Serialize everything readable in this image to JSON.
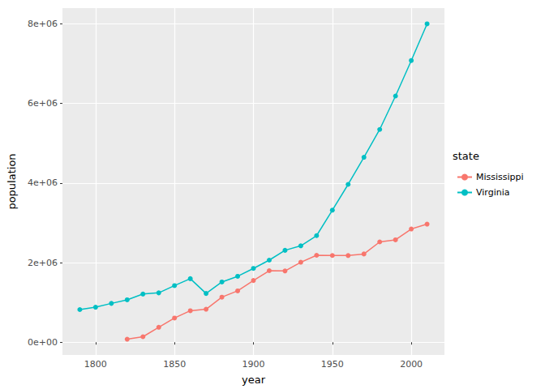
{
  "chart_data": {
    "type": "line",
    "x_label": "year",
    "y_label": "population",
    "legend_title": "state",
    "legend": "right",
    "grid": true,
    "marker": "circle",
    "x": [
      1790,
      1800,
      1810,
      1820,
      1830,
      1840,
      1850,
      1860,
      1870,
      1880,
      1890,
      1900,
      1910,
      1920,
      1930,
      1940,
      1950,
      1960,
      1970,
      1980,
      1990,
      2000,
      2010
    ],
    "series": [
      {
        "name": "Mississippi",
        "color": "#F8766D",
        "values": [
          null,
          null,
          null,
          75000,
          137000,
          376000,
          607000,
          791000,
          828000,
          1132000,
          1290000,
          1551000,
          1797000,
          1791000,
          2010000,
          2184000,
          2179000,
          2178000,
          2217000,
          2521000,
          2573000,
          2845000,
          2967000
        ]
      },
      {
        "name": "Virginia",
        "color": "#00BFC4",
        "values": [
          820000,
          880000,
          975000,
          1065000,
          1211000,
          1240000,
          1422000,
          1596000,
          1225000,
          1513000,
          1656000,
          1854000,
          2062000,
          2309000,
          2422000,
          2678000,
          3319000,
          3967000,
          4648000,
          5347000,
          6187000,
          7079000,
          8001000
        ]
      }
    ],
    "xlim": [
      1779,
      2021
    ],
    "xticks": [
      1800,
      1850,
      1900,
      1950,
      2000
    ],
    "ylim": [
      -321000,
      8397000
    ],
    "yticks": [
      {
        "value": 0,
        "label": "0e+00"
      },
      {
        "value": 2000000,
        "label": "2e+06"
      },
      {
        "value": 4000000,
        "label": "4e+06"
      },
      {
        "value": 6000000,
        "label": "6e+06"
      },
      {
        "value": 8000000,
        "label": "8e+06"
      }
    ]
  }
}
